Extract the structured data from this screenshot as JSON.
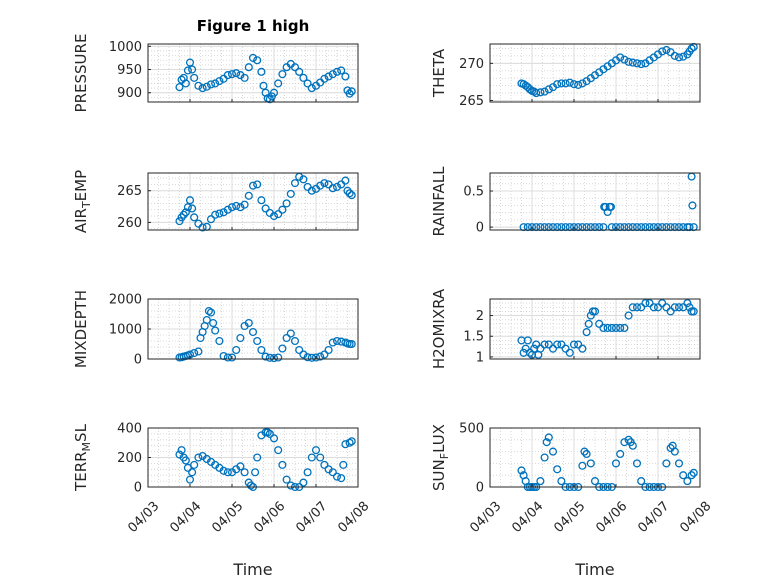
{
  "figure": {
    "title": "Figure 1 high",
    "marker_color": "#0072BD"
  },
  "chart_data": [
    {
      "type": "scatter",
      "ylabel": "PRESSURE",
      "xlabel": "",
      "xlim": [
        0,
        5
      ],
      "ylim": [
        880,
        1005
      ],
      "yticks": [
        900,
        950,
        1000
      ],
      "xtick_labels": [],
      "x": [
        0.75,
        0.8,
        0.85,
        0.9,
        0.95,
        1.0,
        1.05,
        1.1,
        1.2,
        1.3,
        1.4,
        1.5,
        1.6,
        1.7,
        1.8,
        1.9,
        2.0,
        2.1,
        2.2,
        2.3,
        2.4,
        2.5,
        2.6,
        2.7,
        2.75,
        2.8,
        2.85,
        2.9,
        2.95,
        3.0,
        3.1,
        3.2,
        3.3,
        3.4,
        3.5,
        3.6,
        3.7,
        3.8,
        3.9,
        4.0,
        4.1,
        4.2,
        4.3,
        4.4,
        4.5,
        4.6,
        4.7,
        4.75,
        4.8,
        4.85
      ],
      "y": [
        912,
        928,
        932,
        920,
        948,
        965,
        950,
        932,
        915,
        910,
        913,
        918,
        920,
        925,
        930,
        938,
        940,
        942,
        938,
        932,
        955,
        975,
        970,
        945,
        915,
        900,
        888,
        886,
        892,
        900,
        920,
        940,
        955,
        962,
        955,
        945,
        932,
        920,
        910,
        915,
        922,
        930,
        935,
        940,
        945,
        948,
        935,
        905,
        898,
        903
      ]
    },
    {
      "type": "scatter",
      "ylabel": "THETA",
      "xlabel": "",
      "xlim": [
        0,
        5
      ],
      "ylim": [
        264.8,
        272.6
      ],
      "yticks": [
        265,
        270
      ],
      "xtick_labels": [],
      "x": [
        0.75,
        0.8,
        0.85,
        0.9,
        0.95,
        1.0,
        1.05,
        1.1,
        1.2,
        1.3,
        1.4,
        1.5,
        1.6,
        1.7,
        1.8,
        1.9,
        2.0,
        2.1,
        2.2,
        2.3,
        2.4,
        2.5,
        2.6,
        2.7,
        2.8,
        2.9,
        3.0,
        3.1,
        3.2,
        3.3,
        3.4,
        3.5,
        3.6,
        3.7,
        3.8,
        3.9,
        4.0,
        4.1,
        4.2,
        4.3,
        4.4,
        4.5,
        4.6,
        4.7,
        4.75,
        4.8,
        4.85
      ],
      "y": [
        267.3,
        267.2,
        267.0,
        266.8,
        266.5,
        266.3,
        266.2,
        266.0,
        266.1,
        266.2,
        266.5,
        266.8,
        267.2,
        267.3,
        267.3,
        267.4,
        267.2,
        267.1,
        267.3,
        267.6,
        268.0,
        268.4,
        268.8,
        269.2,
        269.6,
        270.0,
        270.4,
        270.8,
        270.5,
        270.2,
        270.1,
        270.0,
        269.9,
        270.0,
        270.4,
        270.8,
        271.2,
        271.6,
        271.8,
        271.5,
        271.0,
        270.8,
        270.9,
        271.2,
        271.6,
        272.0,
        272.2
      ]
    },
    {
      "type": "scatter",
      "ylabel": "AIR_TEMP",
      "xlabel": "",
      "xlim": [
        0,
        5
      ],
      "ylim": [
        258.8,
        267.8
      ],
      "yticks": [
        260,
        265
      ],
      "xtick_labels": [],
      "x": [
        0.75,
        0.8,
        0.85,
        0.9,
        0.95,
        1.0,
        1.05,
        1.1,
        1.2,
        1.3,
        1.4,
        1.5,
        1.6,
        1.7,
        1.8,
        1.9,
        2.0,
        2.1,
        2.2,
        2.3,
        2.4,
        2.5,
        2.6,
        2.7,
        2.8,
        2.9,
        3.0,
        3.1,
        3.2,
        3.3,
        3.4,
        3.5,
        3.6,
        3.7,
        3.8,
        3.9,
        4.0,
        4.1,
        4.2,
        4.3,
        4.4,
        4.5,
        4.6,
        4.7,
        4.75,
        4.8,
        4.85
      ],
      "y": [
        260.2,
        260.8,
        261.2,
        261.6,
        262.4,
        263.5,
        262.2,
        260.8,
        259.8,
        259.2,
        259.3,
        260.5,
        261.2,
        261.4,
        261.6,
        262.0,
        262.4,
        262.6,
        262.4,
        262.8,
        264.2,
        265.8,
        266.0,
        263.5,
        262.2,
        261.5,
        261.0,
        261.3,
        262.0,
        263.0,
        264.5,
        266.2,
        267.2,
        266.8,
        265.6,
        265.0,
        265.3,
        265.8,
        266.2,
        266.0,
        265.4,
        265.6,
        266.0,
        266.6,
        265.0,
        264.6,
        264.3
      ]
    },
    {
      "type": "scatter",
      "ylabel": "RAINFALL",
      "xlabel": "",
      "xlim": [
        0,
        5
      ],
      "ylim": [
        -0.04,
        0.75
      ],
      "yticks": [
        0,
        0.5
      ],
      "xtick_labels": [],
      "x": [
        0.8,
        0.9,
        1.0,
        1.1,
        1.2,
        1.3,
        1.4,
        1.5,
        1.6,
        1.7,
        1.8,
        1.9,
        2.0,
        2.1,
        2.2,
        2.3,
        2.4,
        2.5,
        2.6,
        2.7,
        2.72,
        2.75,
        2.8,
        2.85,
        2.88,
        2.9,
        3.0,
        3.1,
        3.2,
        3.3,
        3.4,
        3.5,
        3.6,
        3.7,
        3.8,
        3.9,
        4.0,
        4.1,
        4.2,
        4.3,
        4.4,
        4.5,
        4.6,
        4.7,
        4.75,
        4.8,
        4.82,
        4.85
      ],
      "y": [
        0,
        0,
        0,
        0,
        0,
        0,
        0,
        0,
        0,
        0,
        0,
        0,
        0,
        0,
        0,
        0,
        0,
        0,
        0,
        0,
        0.28,
        0.28,
        0.21,
        0.28,
        0.28,
        0,
        0,
        0,
        0,
        0,
        0,
        0,
        0,
        0,
        0,
        0,
        0,
        0,
        0,
        0,
        0,
        0,
        0,
        0,
        0,
        0.7,
        0.3,
        0
      ]
    },
    {
      "type": "scatter",
      "ylabel": "MIXDEPTH",
      "xlabel": "",
      "xlim": [
        0,
        5
      ],
      "ylim": [
        0,
        2000
      ],
      "yticks": [
        0,
        1000,
        2000
      ],
      "xtick_labels": [],
      "x": [
        0.75,
        0.8,
        0.85,
        0.9,
        0.95,
        1.0,
        1.1,
        1.2,
        1.25,
        1.3,
        1.35,
        1.4,
        1.45,
        1.5,
        1.55,
        1.6,
        1.7,
        1.8,
        1.9,
        2.0,
        2.1,
        2.2,
        2.3,
        2.4,
        2.5,
        2.6,
        2.7,
        2.8,
        2.9,
        3.0,
        3.1,
        3.2,
        3.3,
        3.4,
        3.5,
        3.6,
        3.7,
        3.8,
        3.9,
        4.0,
        4.1,
        4.2,
        4.3,
        4.4,
        4.5,
        4.6,
        4.7,
        4.75,
        4.8,
        4.85
      ],
      "y": [
        50,
        60,
        80,
        100,
        120,
        150,
        200,
        250,
        700,
        900,
        1100,
        1300,
        1600,
        1550,
        1200,
        950,
        600,
        100,
        50,
        50,
        300,
        700,
        1100,
        1200,
        900,
        600,
        300,
        80,
        40,
        30,
        50,
        350,
        700,
        850,
        600,
        300,
        150,
        60,
        40,
        50,
        80,
        150,
        300,
        550,
        600,
        580,
        550,
        520,
        500,
        500
      ]
    },
    {
      "type": "scatter",
      "ylabel": "H2OMIXRA",
      "xlabel": "",
      "xlim": [
        0,
        5
      ],
      "ylim": [
        0.95,
        2.4
      ],
      "yticks": [
        1,
        1.5,
        2
      ],
      "xtick_labels": [],
      "x": [
        0.75,
        0.8,
        0.85,
        0.9,
        0.95,
        1.0,
        1.05,
        1.1,
        1.15,
        1.2,
        1.3,
        1.4,
        1.5,
        1.6,
        1.7,
        1.8,
        1.9,
        2.0,
        2.1,
        2.2,
        2.3,
        2.35,
        2.4,
        2.45,
        2.5,
        2.6,
        2.7,
        2.8,
        2.9,
        3.0,
        3.1,
        3.2,
        3.3,
        3.4,
        3.5,
        3.6,
        3.7,
        3.8,
        3.9,
        4.0,
        4.1,
        4.2,
        4.3,
        4.4,
        4.5,
        4.6,
        4.7,
        4.75,
        4.8,
        4.85
      ],
      "y": [
        1.4,
        1.1,
        1.2,
        1.4,
        1.1,
        1.05,
        1.2,
        1.3,
        1.05,
        1.2,
        1.3,
        1.3,
        1.2,
        1.3,
        1.3,
        1.2,
        1.1,
        1.3,
        1.3,
        1.2,
        1.6,
        1.8,
        2.0,
        2.1,
        2.1,
        1.8,
        1.7,
        1.7,
        1.7,
        1.7,
        1.7,
        1.7,
        2.0,
        2.2,
        2.2,
        2.2,
        2.3,
        2.3,
        2.2,
        2.2,
        2.3,
        2.2,
        2.1,
        2.2,
        2.2,
        2.2,
        2.3,
        2.2,
        2.1,
        2.1
      ]
    },
    {
      "type": "scatter",
      "ylabel": "TERR_MSL",
      "xlabel": "Time",
      "xlim": [
        0,
        5
      ],
      "ylim": [
        0,
        400
      ],
      "yticks": [
        0,
        200,
        400
      ],
      "xtick_labels": [
        "04/03",
        "04/04",
        "04/05",
        "04/06",
        "04/07",
        "04/08"
      ],
      "x": [
        0.75,
        0.8,
        0.85,
        0.9,
        0.95,
        1.0,
        1.05,
        1.1,
        1.2,
        1.3,
        1.4,
        1.5,
        1.6,
        1.7,
        1.8,
        1.9,
        2.0,
        2.1,
        2.2,
        2.3,
        2.4,
        2.45,
        2.5,
        2.55,
        2.6,
        2.7,
        2.8,
        2.85,
        2.9,
        3.0,
        3.1,
        3.2,
        3.3,
        3.4,
        3.5,
        3.6,
        3.7,
        3.8,
        3.9,
        4.0,
        4.1,
        4.2,
        4.3,
        4.4,
        4.5,
        4.6,
        4.65,
        4.7,
        4.8,
        4.85
      ],
      "y": [
        220,
        250,
        200,
        180,
        130,
        50,
        100,
        150,
        200,
        210,
        190,
        170,
        150,
        130,
        110,
        100,
        100,
        120,
        140,
        100,
        30,
        10,
        0,
        100,
        200,
        350,
        370,
        370,
        360,
        330,
        250,
        150,
        50,
        10,
        0,
        0,
        30,
        100,
        200,
        250,
        200,
        150,
        120,
        100,
        70,
        60,
        150,
        290,
        300,
        310
      ]
    },
    {
      "type": "scatter",
      "ylabel": "SUN_FLUX",
      "xlabel": "Time",
      "xlim": [
        0,
        5
      ],
      "ylim": [
        0,
        500
      ],
      "yticks": [
        0,
        500
      ],
      "xtick_labels": [
        "04/03",
        "04/04",
        "04/05",
        "04/06",
        "04/07",
        "04/08"
      ],
      "x": [
        0.75,
        0.8,
        0.85,
        0.9,
        0.95,
        1.0,
        1.05,
        1.1,
        1.2,
        1.3,
        1.35,
        1.4,
        1.5,
        1.6,
        1.7,
        1.8,
        1.9,
        2.0,
        2.1,
        2.2,
        2.25,
        2.3,
        2.4,
        2.5,
        2.6,
        2.7,
        2.8,
        2.9,
        3.0,
        3.1,
        3.2,
        3.3,
        3.35,
        3.4,
        3.5,
        3.6,
        3.7,
        3.8,
        3.9,
        4.0,
        4.1,
        4.2,
        4.3,
        4.35,
        4.4,
        4.5,
        4.6,
        4.7,
        4.8,
        4.85
      ],
      "y": [
        140,
        100,
        50,
        0,
        0,
        0,
        0,
        0,
        50,
        250,
        380,
        420,
        300,
        150,
        50,
        0,
        0,
        0,
        0,
        180,
        300,
        280,
        200,
        50,
        0,
        0,
        0,
        0,
        200,
        280,
        380,
        400,
        380,
        350,
        200,
        50,
        0,
        0,
        0,
        0,
        0,
        200,
        330,
        350,
        300,
        200,
        100,
        50,
        100,
        120
      ]
    }
  ]
}
